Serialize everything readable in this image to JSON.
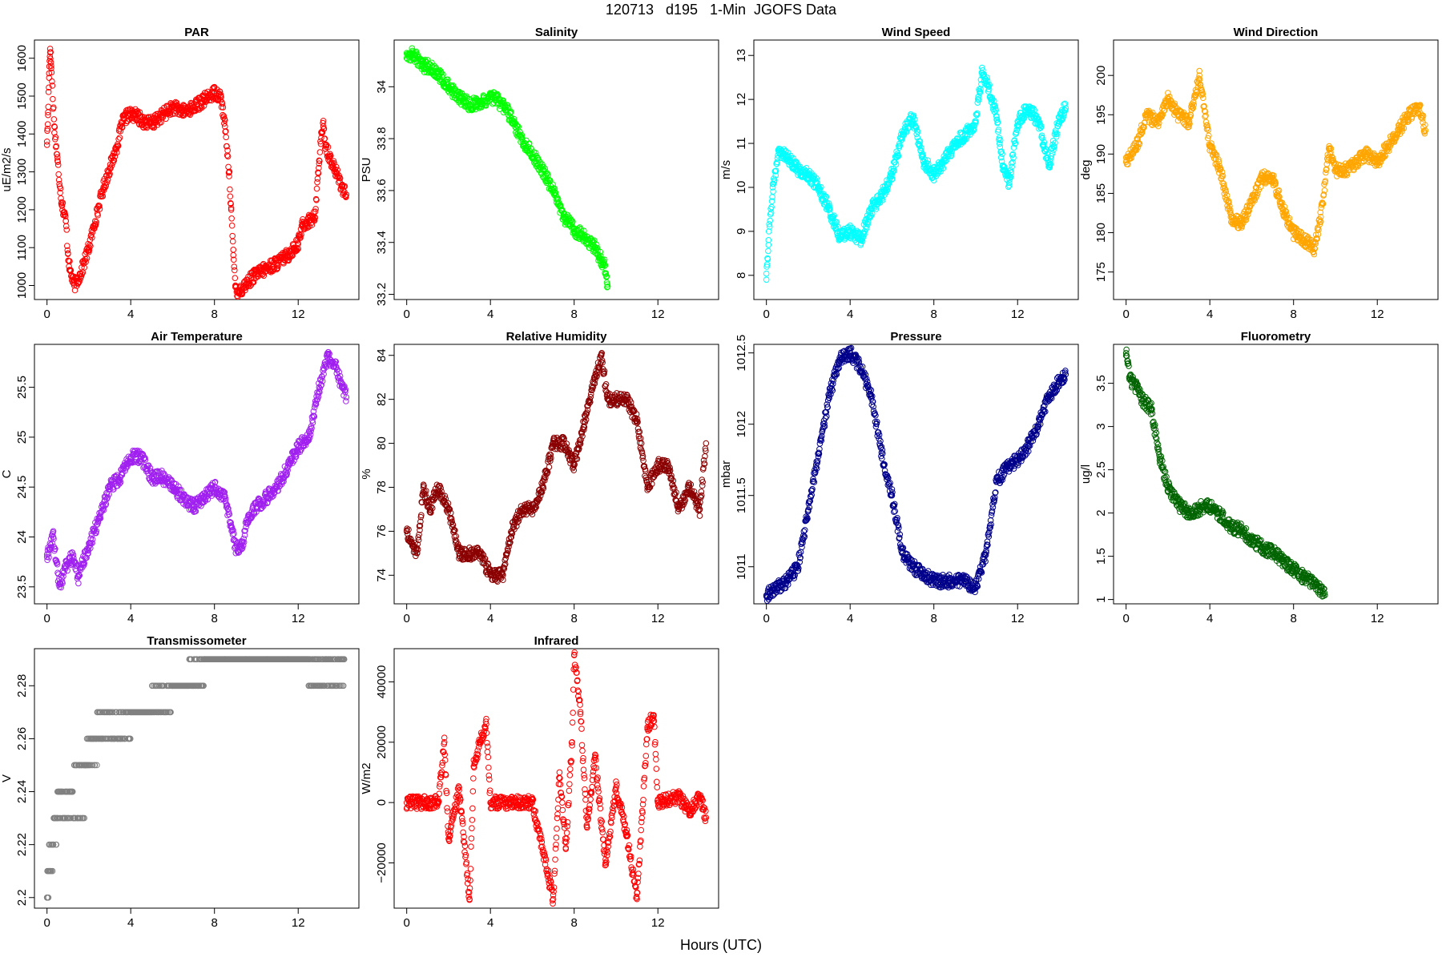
{
  "page": {
    "title": "120713   d195   1-Min  JGOFS Data",
    "xlabel": "Hours (UTC)"
  },
  "chart_data": [
    {
      "type": "scatter",
      "title": "PAR",
      "ylabel": "uE/m2/s",
      "color": "#ff0000",
      "xlim": [
        -0.6,
        14.9
      ],
      "ylim": [
        963,
        1648
      ],
      "yticks": [
        1000,
        1100,
        1200,
        1300,
        1400,
        1500,
        1600
      ],
      "xticks": [
        0,
        4,
        8,
        12
      ],
      "series": [
        {
          "x": [
            0,
            0.05,
            0.1,
            0.15,
            0.2,
            0.35,
            0.5,
            0.7,
            0.9,
            1.0,
            1.1,
            1.3,
            1.6,
            2.0,
            2.3,
            2.7,
            3.0,
            3.3,
            3.6,
            3.85,
            4.2,
            4.7,
            5.1,
            5.5,
            6.0,
            6.5,
            7.0,
            7.5,
            8.0,
            8.3,
            8.5,
            8.7,
            8.8,
            8.9,
            9.0,
            9.1,
            9.3,
            9.6,
            10.0,
            10.5,
            11.0,
            11.5,
            11.8,
            12.0,
            12.2,
            12.5,
            12.8,
            13.0,
            13.1,
            13.2,
            13.3,
            13.5,
            13.8,
            14.1,
            14.3
          ],
          "y": [
            1380,
            1450,
            1560,
            1625,
            1580,
            1420,
            1330,
            1220,
            1170,
            1085,
            1040,
            1000,
            1030,
            1100,
            1170,
            1260,
            1310,
            1360,
            1430,
            1450,
            1450,
            1430,
            1430,
            1450,
            1470,
            1460,
            1470,
            1490,
            1510,
            1500,
            1420,
            1300,
            1200,
            1080,
            1000,
            985,
            990,
            1010,
            1030,
            1045,
            1060,
            1080,
            1100,
            1110,
            1160,
            1170,
            1180,
            1330,
            1390,
            1420,
            1370,
            1340,
            1300,
            1260,
            1240
          ]
        }
      ]
    },
    {
      "type": "scatter",
      "title": "Salinity",
      "ylabel": "PSU",
      "color": "#00ff00",
      "xlim": [
        -0.6,
        14.9
      ],
      "ylim": [
        33.18,
        34.18
      ],
      "yticks": [
        33.2,
        33.4,
        33.6,
        33.8,
        34.0
      ],
      "xticks": [
        0,
        4,
        8,
        12
      ],
      "series": [
        {
          "x": [
            0,
            0.4,
            0.7,
            1.0,
            1.5,
            2.0,
            2.5,
            3.0,
            3.5,
            4.0,
            4.3,
            4.7,
            5.0,
            5.5,
            6.0,
            6.5,
            7.0,
            7.5,
            8.0,
            8.5,
            9.0,
            9.3,
            9.45,
            9.55,
            9.6
          ],
          "y": [
            34.13,
            34.12,
            34.08,
            34.08,
            34.05,
            34.0,
            33.96,
            33.93,
            33.94,
            33.96,
            33.95,
            33.92,
            33.88,
            33.8,
            33.74,
            33.68,
            33.6,
            33.5,
            33.45,
            33.42,
            33.38,
            33.33,
            33.31,
            33.27,
            33.23
          ]
        }
      ]
    },
    {
      "type": "scatter",
      "title": "Wind Speed",
      "ylabel": "m/s",
      "color": "#00ffff",
      "xlim": [
        -0.6,
        14.9
      ],
      "ylim": [
        7.45,
        13.35
      ],
      "yticks": [
        8,
        9,
        10,
        11,
        12,
        13
      ],
      "xticks": [
        0,
        4,
        8,
        12
      ],
      "series": [
        {
          "x": [
            0,
            0.1,
            0.3,
            0.6,
            1.0,
            1.5,
            2.0,
            2.5,
            3.0,
            3.5,
            4.0,
            4.5,
            5.0,
            5.5,
            6.0,
            6.5,
            7.0,
            7.5,
            8.0,
            8.5,
            9.0,
            9.5,
            10.0,
            10.3,
            10.6,
            11.0,
            11.3,
            11.6,
            12.0,
            12.5,
            13.0,
            13.5,
            14.0,
            14.3
          ],
          "y": [
            7.9,
            8.8,
            10.0,
            10.8,
            10.7,
            10.4,
            10.3,
            10.0,
            9.5,
            8.9,
            9.0,
            8.8,
            9.5,
            9.8,
            10.3,
            11.2,
            11.6,
            10.6,
            10.3,
            10.6,
            11.0,
            11.2,
            11.5,
            12.6,
            12.3,
            11.6,
            10.5,
            10.1,
            11.5,
            11.8,
            11.5,
            10.5,
            11.6,
            11.8
          ]
        }
      ]
    },
    {
      "type": "scatter",
      "title": "Wind Direction",
      "ylabel": "deg",
      "color": "#ffa500",
      "xlim": [
        -0.6,
        14.9
      ],
      "ylim": [
        171.5,
        204.5
      ],
      "yticks": [
        175,
        180,
        185,
        190,
        195,
        200
      ],
      "xticks": [
        0,
        4,
        8,
        12
      ],
      "series": [
        {
          "x": [
            0,
            0.5,
            1.0,
            1.5,
            2.0,
            2.5,
            3.0,
            3.5,
            4.0,
            4.5,
            5.0,
            5.5,
            6.0,
            6.5,
            7.0,
            7.5,
            8.0,
            8.5,
            9.0,
            9.3,
            9.7,
            10.0,
            10.5,
            11.0,
            11.5,
            12.0,
            12.5,
            13.0,
            13.5,
            14.0,
            14.3
          ],
          "y": [
            189,
            191,
            195,
            194,
            197,
            195,
            194,
            200,
            191,
            188,
            182,
            181,
            184,
            187,
            187,
            183,
            180,
            179,
            178,
            182,
            191,
            188,
            188,
            189,
            190,
            189,
            191,
            193,
            195,
            196,
            193
          ]
        }
      ]
    },
    {
      "type": "scatter",
      "title": "Air Temperature",
      "ylabel": "C",
      "color": "#a020f0",
      "xlim": [
        -0.6,
        14.9
      ],
      "ylim": [
        23.33,
        25.93
      ],
      "yticks": [
        23.5,
        24.0,
        24.5,
        25.0,
        25.5
      ],
      "xticks": [
        0,
        4,
        8,
        12
      ],
      "series": [
        {
          "x": [
            0,
            0.3,
            0.6,
            0.9,
            1.2,
            1.5,
            1.8,
            2.0,
            2.5,
            3.0,
            3.5,
            4.0,
            4.5,
            5.0,
            5.5,
            6.0,
            6.5,
            7.0,
            7.5,
            8.0,
            8.5,
            8.8,
            9.0,
            9.3,
            9.6,
            10.0,
            10.5,
            11.0,
            11.5,
            12.0,
            12.5,
            13.0,
            13.4,
            13.8,
            14.1,
            14.3
          ],
          "y": [
            23.8,
            24.0,
            23.5,
            23.7,
            23.8,
            23.6,
            23.8,
            23.9,
            24.2,
            24.5,
            24.6,
            24.8,
            24.8,
            24.6,
            24.6,
            24.5,
            24.4,
            24.3,
            24.4,
            24.5,
            24.4,
            24.1,
            23.9,
            23.9,
            24.2,
            24.3,
            24.4,
            24.5,
            24.7,
            24.9,
            25.0,
            25.5,
            25.8,
            25.7,
            25.5,
            25.4
          ]
        }
      ]
    },
    {
      "type": "scatter",
      "title": "Relative Humidity",
      "ylabel": "%",
      "color": "#8b0000",
      "xlim": [
        -0.6,
        14.9
      ],
      "ylim": [
        72.7,
        84.5
      ],
      "yticks": [
        74,
        76,
        78,
        80,
        82,
        84
      ],
      "xticks": [
        0,
        4,
        8,
        12
      ],
      "series": [
        {
          "x": [
            0,
            0.5,
            0.8,
            1.1,
            1.5,
            2.0,
            2.5,
            3.0,
            3.5,
            4.0,
            4.3,
            4.6,
            5.0,
            5.5,
            6.0,
            6.5,
            7.0,
            7.5,
            8.0,
            8.5,
            9.0,
            9.3,
            9.6,
            10.0,
            10.5,
            11.0,
            11.5,
            12.0,
            12.5,
            13.0,
            13.5,
            14.0,
            14.3
          ],
          "y": [
            76,
            75,
            78,
            77,
            78,
            77,
            75,
            75,
            75,
            74,
            74,
            74,
            76,
            77,
            77,
            78,
            80,
            80,
            79,
            81,
            83,
            84,
            82,
            82,
            82,
            81,
            78,
            79,
            79,
            77,
            78,
            77,
            80
          ]
        }
      ]
    },
    {
      "type": "scatter",
      "title": "Pressure",
      "ylabel": "mbar",
      "color": "#00008b",
      "xlim": [
        -0.6,
        14.9
      ],
      "ylim": [
        1010.74,
        1012.56
      ],
      "yticks": [
        1011.0,
        1011.5,
        1012.0,
        1012.5
      ],
      "xticks": [
        0,
        4,
        8,
        12
      ],
      "series": [
        {
          "x": [
            0,
            0.5,
            1.0,
            1.5,
            2.0,
            2.5,
            3.0,
            3.5,
            4.0,
            4.5,
            5.0,
            5.5,
            6.0,
            6.5,
            7.0,
            7.5,
            8.0,
            8.5,
            9.0,
            9.5,
            10.0,
            10.5,
            11.0,
            11.5,
            12.0,
            12.5,
            13.0,
            13.5,
            14.0,
            14.3
          ],
          "y": [
            1010.8,
            1010.85,
            1010.9,
            1011.0,
            1011.4,
            1011.8,
            1012.2,
            1012.45,
            1012.5,
            1012.4,
            1012.2,
            1011.8,
            1011.5,
            1011.1,
            1011.0,
            1010.95,
            1010.9,
            1010.9,
            1010.9,
            1010.9,
            1010.85,
            1011.1,
            1011.6,
            1011.7,
            1011.75,
            1011.85,
            1012.0,
            1012.2,
            1012.3,
            1012.35
          ]
        }
      ]
    },
    {
      "type": "scatter",
      "title": "Fluorometry",
      "ylabel": "ug/l",
      "color": "#006400",
      "xlim": [
        -0.6,
        14.9
      ],
      "ylim": [
        0.95,
        3.95
      ],
      "yticks": [
        1.0,
        1.5,
        2.0,
        2.5,
        3.0,
        3.5
      ],
      "xticks": [
        0,
        4,
        8,
        12
      ],
      "series": [
        {
          "x": [
            0,
            0.2,
            0.5,
            0.8,
            1.2,
            1.6,
            2.0,
            2.5,
            3.0,
            3.5,
            3.8,
            4.2,
            4.6,
            5.0,
            5.5,
            6.0,
            6.5,
            7.0,
            7.5,
            8.0,
            8.5,
            9.0,
            9.3,
            9.5
          ],
          "y": [
            3.85,
            3.55,
            3.45,
            3.3,
            3.2,
            2.65,
            2.3,
            2.1,
            2.0,
            2.05,
            2.1,
            2.05,
            1.95,
            1.85,
            1.8,
            1.7,
            1.6,
            1.55,
            1.45,
            1.35,
            1.25,
            1.2,
            1.1,
            1.05
          ]
        }
      ]
    },
    {
      "type": "scatter",
      "title": "Transmissometer",
      "ylabel": "V",
      "color": "#808080",
      "xlim": [
        -0.6,
        14.9
      ],
      "ylim": [
        2.196,
        2.294
      ],
      "yticks": [
        2.2,
        2.22,
        2.24,
        2.26,
        2.28
      ],
      "xticks": [
        0,
        4,
        8,
        12
      ],
      "series": [
        {
          "x": [
            0.0,
            0.1,
            0.3,
            0.5,
            0.9,
            1.3,
            1.8,
            2.4,
            3.0,
            3.5,
            4.0,
            5.0,
            6.0,
            6.8,
            7.5,
            8.5,
            9.5,
            10.5,
            11.5,
            12.5,
            13.4,
            14.2
          ],
          "y": [
            2.2,
            2.21,
            2.22,
            2.23,
            2.24,
            2.23,
            2.25,
            2.26,
            2.27,
            2.26,
            2.27,
            2.27,
            2.28,
            2.28,
            2.29,
            2.29,
            2.29,
            2.29,
            2.29,
            2.29,
            2.28,
            2.29
          ]
        }
      ]
    },
    {
      "type": "scatter",
      "title": "Infrared",
      "ylabel": "W/m2",
      "color": "#ff0000",
      "xlim": [
        -0.6,
        14.9
      ],
      "ylim": [
        -35000,
        51000
      ],
      "yticks": [
        -20000,
        0,
        20000,
        40000
      ],
      "xticks": [
        0,
        4,
        8,
        12
      ],
      "series": [
        {
          "x": [
            0,
            0.5,
            1.0,
            1.5,
            1.8,
            2.0,
            2.5,
            3.0,
            3.2,
            3.5,
            3.8,
            4.0,
            5.0,
            6.0,
            7.0,
            7.3,
            7.6,
            7.9,
            8.0,
            8.3,
            8.6,
            9.0,
            9.5,
            10.0,
            10.5,
            11.0,
            11.5,
            11.8,
            12.0,
            13.0,
            13.5,
            14.0,
            14.3
          ],
          "y": [
            0,
            0,
            0,
            0,
            20000,
            -12000,
            5000,
            -32000,
            12000,
            20000,
            26000,
            0,
            0,
            0,
            -32000,
            10000,
            -15000,
            20000,
            49000,
            30000,
            -8000,
            15000,
            -20000,
            5000,
            -10000,
            -32000,
            25000,
            29000,
            0,
            2000,
            -3000,
            2000,
            -5000
          ]
        }
      ]
    }
  ]
}
